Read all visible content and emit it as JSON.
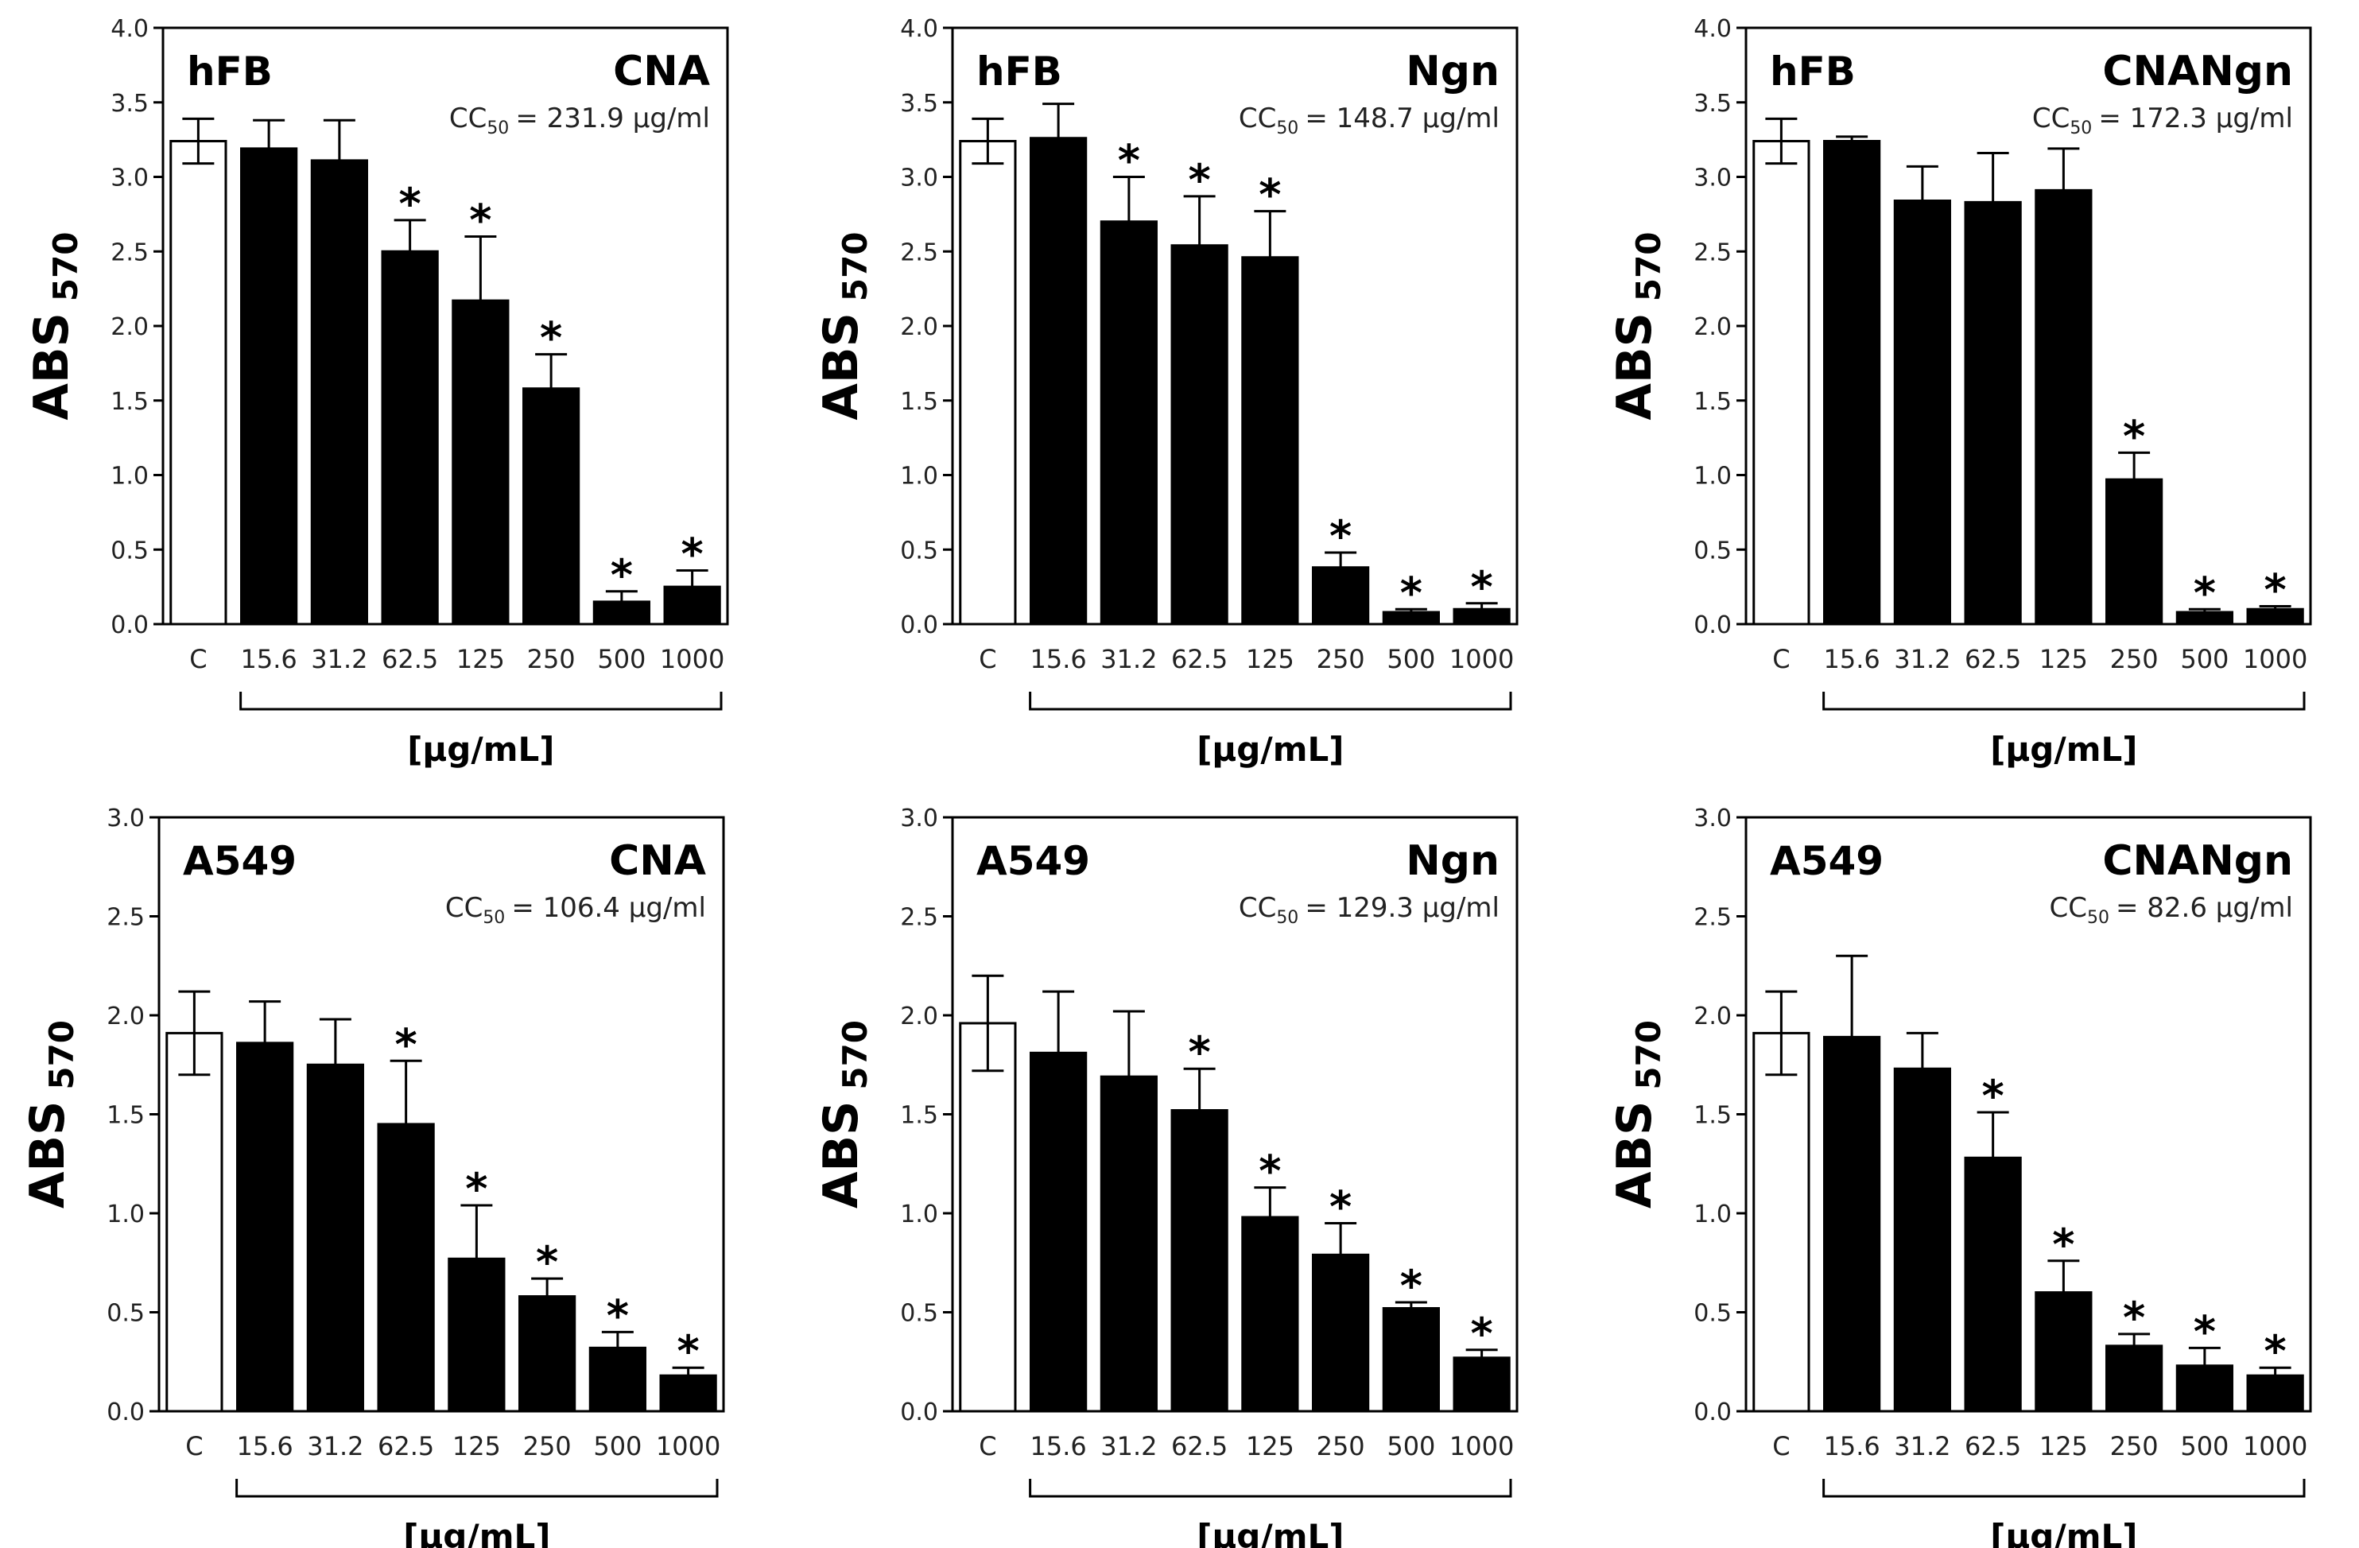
{
  "chart_data": [
    {
      "type": "bar",
      "cell_line": "hFB",
      "compound": "CNA",
      "cc50_label": "CC",
      "cc50_sub": "50",
      "cc50_value": "= 231.9 µg/ml",
      "ylabel_main": "ABS",
      "ylabel_sub": "570",
      "xlabel": "[µg/mL]",
      "ylim": [
        0,
        4.0
      ],
      "yticks": [
        "0.0",
        "0.5",
        "1.0",
        "1.5",
        "2.0",
        "2.5",
        "3.0",
        "3.5",
        "4.0"
      ],
      "categories": [
        "C",
        "15.6",
        "31.2",
        "62.5",
        "125",
        "250",
        "500",
        "1000"
      ],
      "values": [
        3.24,
        3.19,
        3.11,
        2.5,
        2.17,
        1.58,
        0.15,
        0.25
      ],
      "errors": [
        0.15,
        0.19,
        0.27,
        0.21,
        0.43,
        0.23,
        0.07,
        0.11
      ],
      "significance": [
        "",
        "",
        "",
        "*",
        "*",
        "*",
        "*",
        "*"
      ]
    },
    {
      "type": "bar",
      "cell_line": "hFB",
      "compound": "Ngn",
      "cc50_label": "CC",
      "cc50_sub": "50",
      "cc50_value": "= 148.7 µg/ml",
      "ylabel_main": "ABS",
      "ylabel_sub": "570",
      "xlabel": "[µg/mL]",
      "ylim": [
        0,
        4.0
      ],
      "yticks": [
        "0.0",
        "0.5",
        "1.0",
        "1.5",
        "2.0",
        "2.5",
        "3.0",
        "3.5",
        "4.0"
      ],
      "categories": [
        "C",
        "15.6",
        "31.2",
        "62.5",
        "125",
        "250",
        "500",
        "1000"
      ],
      "values": [
        3.24,
        3.26,
        2.7,
        2.54,
        2.46,
        0.38,
        0.08,
        0.1
      ],
      "errors": [
        0.15,
        0.23,
        0.3,
        0.33,
        0.31,
        0.1,
        0.02,
        0.04
      ],
      "significance": [
        "",
        "",
        "*",
        "*",
        "*",
        "*",
        "*",
        "*"
      ]
    },
    {
      "type": "bar",
      "cell_line": "hFB",
      "compound": "CNANgn",
      "cc50_label": "CC",
      "cc50_sub": "50",
      "cc50_value": "= 172.3 µg/ml",
      "ylabel_main": "ABS",
      "ylabel_sub": "570",
      "xlabel": "[µg/mL]",
      "ylim": [
        0,
        4.0
      ],
      "yticks": [
        "0.0",
        "0.5",
        "1.0",
        "1.5",
        "2.0",
        "2.5",
        "3.0",
        "3.5",
        "4.0"
      ],
      "categories": [
        "C",
        "15.6",
        "31.2",
        "62.5",
        "125",
        "250",
        "500",
        "1000"
      ],
      "values": [
        3.24,
        3.24,
        2.84,
        2.83,
        2.91,
        0.97,
        0.08,
        0.1
      ],
      "errors": [
        0.15,
        0.03,
        0.23,
        0.33,
        0.28,
        0.18,
        0.02,
        0.02
      ],
      "significance": [
        "",
        "",
        "",
        "",
        "",
        "*",
        "*",
        "*"
      ]
    },
    {
      "type": "bar",
      "cell_line": "A549",
      "compound": "CNA",
      "cc50_label": "CC",
      "cc50_sub": "50",
      "cc50_value": "=    106.4 µg/ml",
      "ylabel_main": "ABS",
      "ylabel_sub": "570",
      "xlabel": "[µg/mL]",
      "ylim": [
        0,
        3.0
      ],
      "yticks": [
        "0.0",
        "0.5",
        "1.0",
        "1.5",
        "2.0",
        "2.5",
        "3.0"
      ],
      "categories": [
        "C",
        "15.6",
        "31.2",
        "62.5",
        "125",
        "250",
        "500",
        "1000"
      ],
      "values": [
        1.91,
        1.86,
        1.75,
        1.45,
        0.77,
        0.58,
        0.32,
        0.18
      ],
      "errors": [
        0.21,
        0.21,
        0.23,
        0.32,
        0.27,
        0.09,
        0.08,
        0.04
      ],
      "significance": [
        "",
        "",
        "",
        "*",
        "*",
        "*",
        "*",
        "*"
      ]
    },
    {
      "type": "bar",
      "cell_line": "A549",
      "compound": "Ngn",
      "cc50_label": "CC",
      "cc50_sub": "50",
      "cc50_value": "= 129.3 µg/ml",
      "ylabel_main": "ABS",
      "ylabel_sub": "570",
      "xlabel": "[µg/mL]",
      "ylim": [
        0,
        3.0
      ],
      "yticks": [
        "0.0",
        "0.5",
        "1.0",
        "1.5",
        "2.0",
        "2.5",
        "3.0"
      ],
      "categories": [
        "C",
        "15.6",
        "31.2",
        "62.5",
        "125",
        "250",
        "500",
        "1000"
      ],
      "values": [
        1.96,
        1.81,
        1.69,
        1.52,
        0.98,
        0.79,
        0.52,
        0.27
      ],
      "errors": [
        0.24,
        0.31,
        0.33,
        0.21,
        0.15,
        0.16,
        0.03,
        0.04
      ],
      "significance": [
        "",
        "",
        "",
        "*",
        "*",
        "*",
        "*",
        "*"
      ]
    },
    {
      "type": "bar",
      "cell_line": "A549",
      "compound": "CNANgn",
      "cc50_label": "CC",
      "cc50_sub": "50",
      "cc50_value": "=    82.6 µg/ml",
      "ylabel_main": "ABS",
      "ylabel_sub": "570",
      "xlabel": "[µg/mL]",
      "ylim": [
        0,
        3.0
      ],
      "yticks": [
        "0.0",
        "0.5",
        "1.0",
        "1.5",
        "2.0",
        "2.5",
        "3.0"
      ],
      "categories": [
        "C",
        "15.6",
        "31.2",
        "62.5",
        "125",
        "250",
        "500",
        "1000"
      ],
      "values": [
        1.91,
        1.89,
        1.73,
        1.28,
        0.6,
        0.33,
        0.23,
        0.18
      ],
      "errors": [
        0.21,
        0.41,
        0.18,
        0.23,
        0.16,
        0.06,
        0.09,
        0.04
      ],
      "significance": [
        "",
        "",
        "",
        "*",
        "*",
        "*",
        "*",
        "*"
      ]
    }
  ],
  "colors": {
    "control_fill": "#ffffff",
    "treated_fill": "#000000",
    "axis": "#000000"
  }
}
